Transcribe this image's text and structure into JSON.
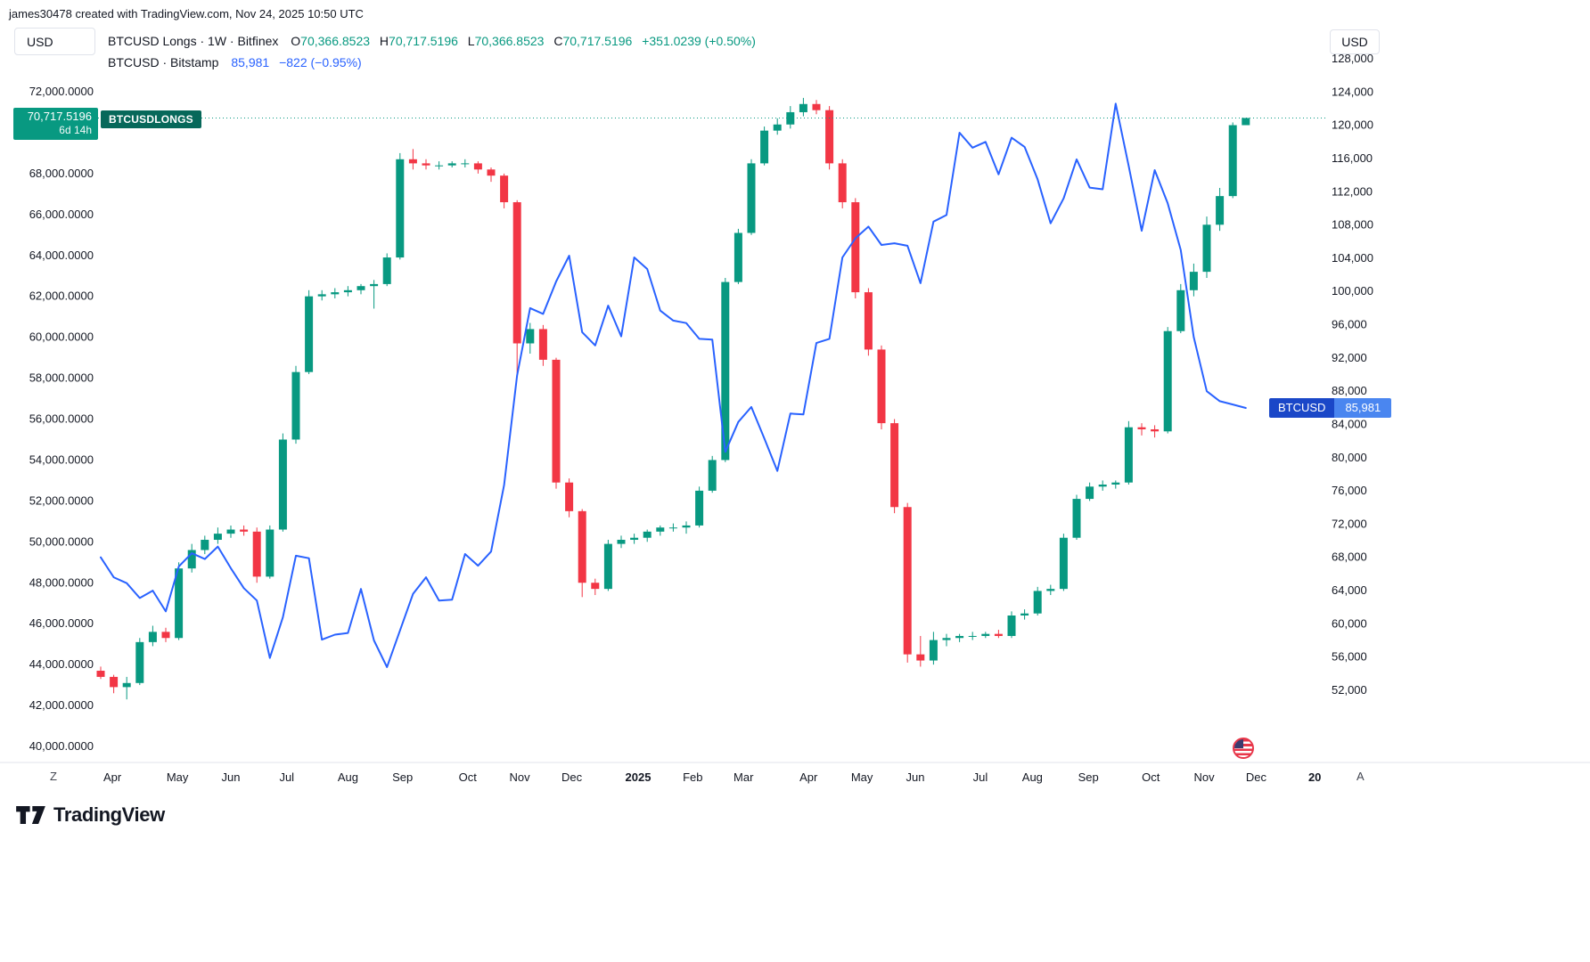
{
  "header": {
    "attribution": "james30478 created with TradingView.com, Nov 24, 2025 10:50 UTC",
    "left_currency_button": "USD",
    "right_currency_button": "USD",
    "legend": {
      "line1": {
        "title": "BTCUSD Longs · 1W · Bitfinex",
        "ohlc": [
          {
            "label": "O",
            "value": "70,366.8523"
          },
          {
            "label": "H",
            "value": "70,717.5196"
          },
          {
            "label": "L",
            "value": "70,366.8523"
          },
          {
            "label": "C",
            "value": "70,717.5196"
          }
        ],
        "change": "+351.0239 (+0.50%)"
      },
      "line2": {
        "title": "BTCUSD · Bitstamp",
        "price": "85,981",
        "change": "−822 (−0.95%)"
      }
    }
  },
  "price_labels": {
    "longs": {
      "price": "70,717.5196",
      "countdown": "6d 14h",
      "tag": "BTCUSDLONGS",
      "value": 70717.5196
    },
    "btcusd": {
      "symbol": "BTCUSD",
      "price": "85,981",
      "value": 85981
    }
  },
  "time_axis": {
    "left_marker": "Z",
    "right_marker": "A"
  },
  "footer": {
    "brand": "TradingView"
  },
  "colors": {
    "up": "#089981",
    "down": "#F23645",
    "line": "#2962FF",
    "current_price_line": "#089981",
    "longs_badge": "#089981",
    "longs_tag": "#07685a",
    "btc_badge_symbol": "#1a47c8",
    "btc_badge_value": "#4a86f0"
  },
  "chart_data": {
    "type": "mixed",
    "title": "BTCUSD Longs (Bitfinex, 1W, candles, left axis) vs BTCUSD (Bitstamp, line, right axis)",
    "x_axis": {
      "months": [
        {
          "label": "Apr",
          "index": 0.9
        },
        {
          "label": "May",
          "index": 5.9
        },
        {
          "label": "Jun",
          "index": 10.0
        },
        {
          "label": "Jul",
          "index": 14.3
        },
        {
          "label": "Aug",
          "index": 19.0
        },
        {
          "label": "Sep",
          "index": 23.2
        },
        {
          "label": "Oct",
          "index": 28.2
        },
        {
          "label": "Nov",
          "index": 32.2
        },
        {
          "label": "Dec",
          "index": 36.2
        },
        {
          "label": "2025",
          "index": 41.3,
          "bold": true
        },
        {
          "label": "Feb",
          "index": 45.5
        },
        {
          "label": "Mar",
          "index": 49.4
        },
        {
          "label": "Apr",
          "index": 54.4
        },
        {
          "label": "May",
          "index": 58.5
        },
        {
          "label": "Jun",
          "index": 62.6
        },
        {
          "label": "Jul",
          "index": 67.6
        },
        {
          "label": "Aug",
          "index": 71.6
        },
        {
          "label": "Sep",
          "index": 75.9
        },
        {
          "label": "Oct",
          "index": 80.7
        },
        {
          "label": "Nov",
          "index": 84.8
        },
        {
          "label": "Dec",
          "index": 88.8
        },
        {
          "label": "20",
          "index": 93.3,
          "bold": true
        }
      ]
    },
    "left_axis": {
      "min": 40000,
      "max": 72000,
      "values": [
        72000,
        68000,
        66000,
        64000,
        62000,
        60000,
        58000,
        56000,
        54000,
        52000,
        50000,
        48000,
        46000,
        44000,
        42000,
        40000
      ],
      "labels": [
        "72,000.0000",
        "68,000.0000",
        "66,000.0000",
        "64,000.0000",
        "62,000.0000",
        "60,000.0000",
        "58,000.0000",
        "56,000.0000",
        "54,000.0000",
        "52,000.0000",
        "50,000.0000",
        "48,000.0000",
        "46,000.0000",
        "44,000.0000",
        "42,000.0000",
        "40,000.0000"
      ]
    },
    "right_axis": {
      "min": 52000,
      "max": 128000,
      "values": [
        128000,
        124000,
        120000,
        116000,
        112000,
        108000,
        104000,
        100000,
        96000,
        92000,
        88000,
        84000,
        80000,
        76000,
        72000,
        68000,
        64000,
        60000,
        56000,
        52000
      ],
      "labels": [
        "128,000",
        "124,000",
        "120,000",
        "116,000",
        "112,000",
        "108,000",
        "104,000",
        "100,000",
        "96,000",
        "92,000",
        "88,000",
        "84,000",
        "80,000",
        "76,000",
        "72,000",
        "68,000",
        "64,000",
        "60,000",
        "56,000",
        "52,000"
      ]
    },
    "current_price_line": {
      "value": 70717.5196,
      "color": "#089981",
      "style": "dotted"
    },
    "series": [
      {
        "name": "BTCUSD Longs",
        "symbol": "BTCUSDLONGS",
        "exchange": "Bitfinex",
        "timeframe": "1W",
        "type": "candlestick",
        "axis": "left",
        "up_color": "#089981",
        "down_color": "#F23645",
        "ohlc": [
          [
            43700,
            43900,
            43300,
            43400
          ],
          [
            43400,
            43500,
            42600,
            42900
          ],
          [
            42900,
            43400,
            42300,
            43100
          ],
          [
            43100,
            45300,
            43000,
            45100
          ],
          [
            45100,
            45900,
            44900,
            45600
          ],
          [
            45600,
            45800,
            45100,
            45300
          ],
          [
            45300,
            49000,
            45200,
            48700
          ],
          [
            48700,
            49900,
            48500,
            49600
          ],
          [
            49600,
            50300,
            49400,
            50100
          ],
          [
            50100,
            50700,
            49900,
            50400
          ],
          [
            50400,
            50800,
            50200,
            50600
          ],
          [
            50600,
            50800,
            50300,
            50500
          ],
          [
            50500,
            50700,
            48000,
            48300
          ],
          [
            48300,
            50800,
            48200,
            50600
          ],
          [
            50600,
            55300,
            50500,
            55000
          ],
          [
            55000,
            58600,
            54800,
            58300
          ],
          [
            58300,
            62300,
            58200,
            62000
          ],
          [
            62000,
            62300,
            61800,
            62100
          ],
          [
            62100,
            62400,
            61900,
            62200
          ],
          [
            62200,
            62500,
            62000,
            62300
          ],
          [
            62300,
            62600,
            62100,
            62500
          ],
          [
            62500,
            62800,
            61400,
            62600
          ],
          [
            62600,
            64100,
            62500,
            63900
          ],
          [
            63900,
            69000,
            63800,
            68700
          ],
          [
            68700,
            69200,
            68200,
            68500
          ],
          [
            68500,
            68700,
            68200,
            68400
          ],
          [
            68400,
            68600,
            68200,
            68400
          ],
          [
            68400,
            68600,
            68300,
            68500
          ],
          [
            68500,
            68700,
            68300,
            68500
          ],
          [
            68500,
            68600,
            68000,
            68200
          ],
          [
            68200,
            68300,
            67600,
            67900
          ],
          [
            67900,
            68000,
            66300,
            66600
          ],
          [
            66600,
            66700,
            58200,
            59700
          ],
          [
            59700,
            60700,
            59200,
            60400
          ],
          [
            60400,
            60600,
            58600,
            58900
          ],
          [
            58900,
            59000,
            52600,
            52900
          ],
          [
            52900,
            53100,
            51200,
            51500
          ],
          [
            51500,
            51600,
            47300,
            48000
          ],
          [
            48000,
            48200,
            47400,
            47700
          ],
          [
            47700,
            50100,
            47600,
            49900
          ],
          [
            49900,
            50300,
            49700,
            50100
          ],
          [
            50100,
            50400,
            49900,
            50200
          ],
          [
            50200,
            50600,
            50000,
            50500
          ],
          [
            50500,
            50800,
            50300,
            50700
          ],
          [
            50700,
            50900,
            50500,
            50700
          ],
          [
            50700,
            51000,
            50400,
            50800
          ],
          [
            50800,
            52700,
            50700,
            52500
          ],
          [
            52500,
            54200,
            52400,
            54000
          ],
          [
            54000,
            62900,
            53900,
            62700
          ],
          [
            62700,
            65300,
            62600,
            65100
          ],
          [
            65100,
            68700,
            65000,
            68500
          ],
          [
            68500,
            70300,
            68400,
            70100
          ],
          [
            70100,
            70700,
            69900,
            70400
          ],
          [
            70400,
            71300,
            70200,
            71000
          ],
          [
            71000,
            71700,
            70800,
            71400
          ],
          [
            71400,
            71600,
            70900,
            71100
          ],
          [
            71100,
            71300,
            68200,
            68500
          ],
          [
            68500,
            68700,
            66300,
            66600
          ],
          [
            66600,
            66800,
            61900,
            62200
          ],
          [
            62200,
            62400,
            59100,
            59400
          ],
          [
            59400,
            59600,
            55500,
            55800
          ],
          [
            55800,
            56000,
            51400,
            51700
          ],
          [
            51700,
            51900,
            44100,
            44500
          ],
          [
            44500,
            45400,
            43900,
            44200
          ],
          [
            44200,
            45600,
            44000,
            45200
          ],
          [
            45200,
            45500,
            44900,
            45300
          ],
          [
            45300,
            45500,
            45100,
            45400
          ],
          [
            45400,
            45600,
            45200,
            45400
          ],
          [
            45400,
            45600,
            45300,
            45500
          ],
          [
            45500,
            45700,
            45300,
            45400
          ],
          [
            45400,
            46600,
            45300,
            46400
          ],
          [
            46400,
            46700,
            46200,
            46500
          ],
          [
            46500,
            47800,
            46400,
            47600
          ],
          [
            47600,
            47900,
            47400,
            47700
          ],
          [
            47700,
            50400,
            47600,
            50200
          ],
          [
            50200,
            52300,
            50100,
            52100
          ],
          [
            52100,
            52900,
            52000,
            52700
          ],
          [
            52700,
            53000,
            52500,
            52800
          ],
          [
            52800,
            53000,
            52600,
            52900
          ],
          [
            52900,
            55900,
            52800,
            55600
          ],
          [
            55600,
            55800,
            55200,
            55500
          ],
          [
            55500,
            55700,
            55100,
            55400
          ],
          [
            55400,
            60500,
            55300,
            60300
          ],
          [
            60300,
            62600,
            60200,
            62300
          ],
          [
            62300,
            63600,
            62000,
            63200
          ],
          [
            63200,
            65900,
            62900,
            65500
          ],
          [
            65500,
            67300,
            65200,
            66900
          ],
          [
            66900,
            70500,
            66800,
            70366.85
          ],
          [
            70366.8523,
            70717.5196,
            70366.8523,
            70717.5196
          ]
        ]
      },
      {
        "name": "BTCUSD",
        "exchange": "Bitstamp",
        "type": "line",
        "axis": "right",
        "color": "#2962FF",
        "values": [
          68000,
          65600,
          64900,
          63100,
          64000,
          61500,
          66900,
          68500,
          67800,
          69300,
          66700,
          64300,
          62800,
          55900,
          60800,
          68200,
          67900,
          58100,
          58700,
          58900,
          64200,
          58000,
          54800,
          59200,
          63600,
          65600,
          62800,
          62900,
          68400,
          67000,
          68700,
          76700,
          89900,
          98000,
          97300,
          101200,
          104300,
          95100,
          93500,
          98300,
          94600,
          104100,
          102700,
          97700,
          96500,
          96200,
          94300,
          94200,
          80700,
          84300,
          86100,
          82300,
          78400,
          85300,
          85200,
          93800,
          94300,
          104100,
          106400,
          107800,
          105600,
          105800,
          105500,
          101000,
          108400,
          109200,
          119100,
          117300,
          118000,
          114100,
          118500,
          117400,
          113500,
          108200,
          111200,
          115900,
          112500,
          112300,
          122600,
          115100,
          107300,
          114600,
          110600,
          105000,
          94500,
          88000,
          86800,
          86400,
          85981
        ]
      }
    ]
  }
}
